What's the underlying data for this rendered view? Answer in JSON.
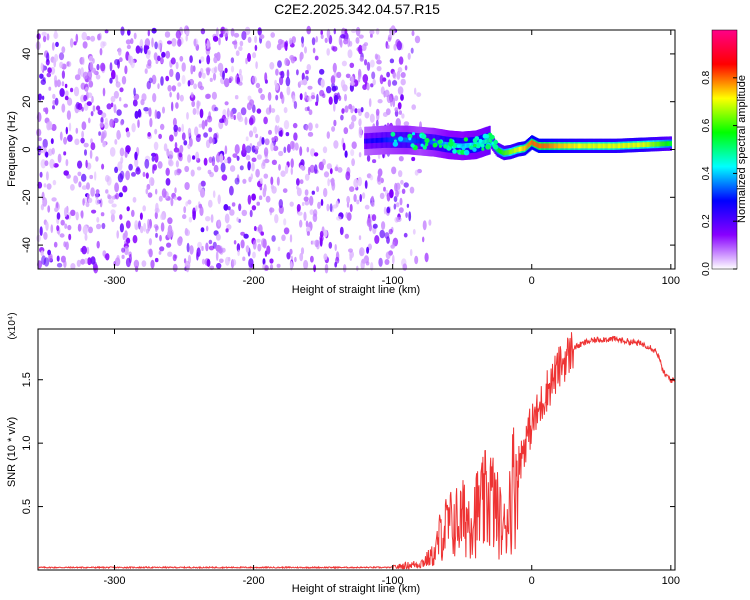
{
  "title": "C2E2.2025.342.04.57.R15",
  "chart_data": [
    {
      "type": "heatmap",
      "title": "C2E2.2025.342.04.57.R15",
      "xlabel": "Height of straight line (km)",
      "ylabel": "Frequency (Hz)",
      "xlim": [
        -355,
        103
      ],
      "ylim": [
        -50,
        50
      ],
      "x_ticks": [
        -300,
        -200,
        -100,
        0,
        100
      ],
      "y_ticks": [
        -40,
        -20,
        0,
        20,
        40
      ],
      "colorbar": {
        "label": "Normalized spectral amplitude",
        "range": [
          0,
          1
        ],
        "ticks": [
          0.0,
          0.2,
          0.4,
          0.6,
          0.8
        ],
        "colors": [
          "#ffffff",
          "#8800ff",
          "#0000ff",
          "#00ffff",
          "#00ff00",
          "#ffff00",
          "#ff0000",
          "#ff0088"
        ]
      },
      "noise_region": {
        "x_range": [
          -355,
          -100
        ],
        "y_range": [
          -50,
          50
        ],
        "amplitude": 0.1
      },
      "ridge": {
        "x": [
          -120,
          -105,
          -90,
          -80,
          -70,
          -60,
          -50,
          -40,
          -35,
          -30,
          -25,
          -20,
          -15,
          -10,
          -5,
          0,
          5,
          10,
          20,
          40,
          60,
          80,
          100
        ],
        "y": [
          3.5,
          4,
          4,
          3.5,
          3,
          2,
          1.5,
          2,
          3,
          4,
          0,
          -1.5,
          -1,
          0,
          0.5,
          3,
          1.5,
          1.5,
          1.5,
          1.5,
          1.5,
          2,
          2.5
        ],
        "amplitude": [
          0.25,
          0.3,
          0.35,
          0.3,
          0.35,
          0.4,
          0.4,
          0.45,
          0.45,
          0.5,
          0.55,
          0.6,
          0.65,
          0.7,
          0.75,
          0.8,
          0.8,
          0.8,
          0.75,
          0.7,
          0.7,
          0.7,
          0.55
        ]
      }
    },
    {
      "type": "line",
      "xlabel": "Height of straight line (km)",
      "ylabel": "SNR (10 * v/v)",
      "y_scale_label": "(x10⁴)",
      "xlim": [
        -355,
        103
      ],
      "ylim": [
        0,
        1.9
      ],
      "x_ticks": [
        -300,
        -200,
        -100,
        0,
        100
      ],
      "y_ticks": [
        0.5,
        1.0,
        1.5
      ],
      "series": [
        {
          "name": "SNR",
          "color": "#ee3333",
          "x": [
            -355,
            -200,
            -100,
            -80,
            -70,
            -65,
            -60,
            -50,
            -40,
            -35,
            -30,
            -25,
            -20,
            -15,
            -10,
            -5,
            0,
            5,
            10,
            15,
            20,
            30,
            40,
            50,
            60,
            70,
            80,
            85,
            90,
            95,
            100,
            103
          ],
          "y": [
            0.02,
            0.02,
            0.02,
            0.05,
            0.12,
            0.3,
            0.35,
            0.4,
            0.45,
            0.5,
            0.6,
            0.45,
            0.3,
            0.6,
            0.8,
            1.0,
            1.15,
            1.25,
            1.4,
            1.5,
            1.6,
            1.75,
            1.8,
            1.82,
            1.82,
            1.8,
            1.78,
            1.76,
            1.72,
            1.55,
            1.5,
            1.49
          ]
        }
      ]
    }
  ]
}
